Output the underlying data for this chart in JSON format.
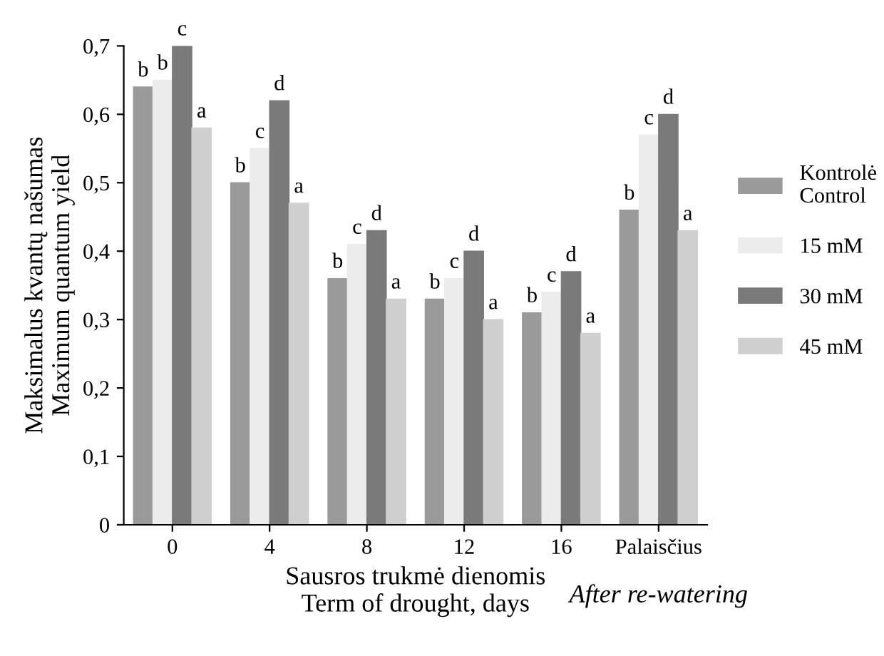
{
  "chart_data": {
    "type": "bar",
    "categories": [
      "0",
      "4",
      "8",
      "12",
      "16",
      "Palaisčius"
    ],
    "xlabel": "Sausros trukmė dienomis\nTerm of drought, days",
    "ylabel": "Maksimalus kvantų našumas\nMaximum quantum yield",
    "series": [
      {
        "name": "Kontrolė\nControl",
        "color": "#9a9a9a",
        "values": [
          0.64,
          0.5,
          0.36,
          0.33,
          0.31,
          0.46
        ],
        "value_labels": [
          "b",
          "b",
          "b",
          "b",
          "b",
          "b"
        ]
      },
      {
        "name": "15 mM",
        "color": "#ececec",
        "values": [
          0.65,
          0.55,
          0.41,
          0.36,
          0.34,
          0.57
        ],
        "value_labels": [
          "b",
          "c",
          "c",
          "c",
          "c",
          "c"
        ]
      },
      {
        "name": "30 mM",
        "color": "#7a7a7a",
        "values": [
          0.7,
          0.62,
          0.43,
          0.4,
          0.37,
          0.6
        ],
        "value_labels": [
          "c",
          "d",
          "d",
          "d",
          "d",
          "d"
        ]
      },
      {
        "name": "45 mM",
        "color": "#cfcfcf",
        "values": [
          0.58,
          0.47,
          0.33,
          0.3,
          0.28,
          0.43
        ],
        "value_labels": [
          "a",
          "a",
          "a",
          "a",
          "a",
          "a"
        ]
      }
    ],
    "annotations": [
      "After re-watering"
    ],
    "ylim": [
      0,
      0.7
    ],
    "yticks": [
      {
        "value": 0,
        "label": "0"
      },
      {
        "value": 0.1,
        "label": "0,1"
      },
      {
        "value": 0.2,
        "label": "0,2"
      },
      {
        "value": 0.3,
        "label": "0,3"
      },
      {
        "value": 0.4,
        "label": "0,4"
      },
      {
        "value": 0.5,
        "label": "0,5"
      },
      {
        "value": 0.6,
        "label": "0,6"
      },
      {
        "value": 0.7,
        "label": "0,7"
      }
    ],
    "legend": "right",
    "grid": false
  }
}
